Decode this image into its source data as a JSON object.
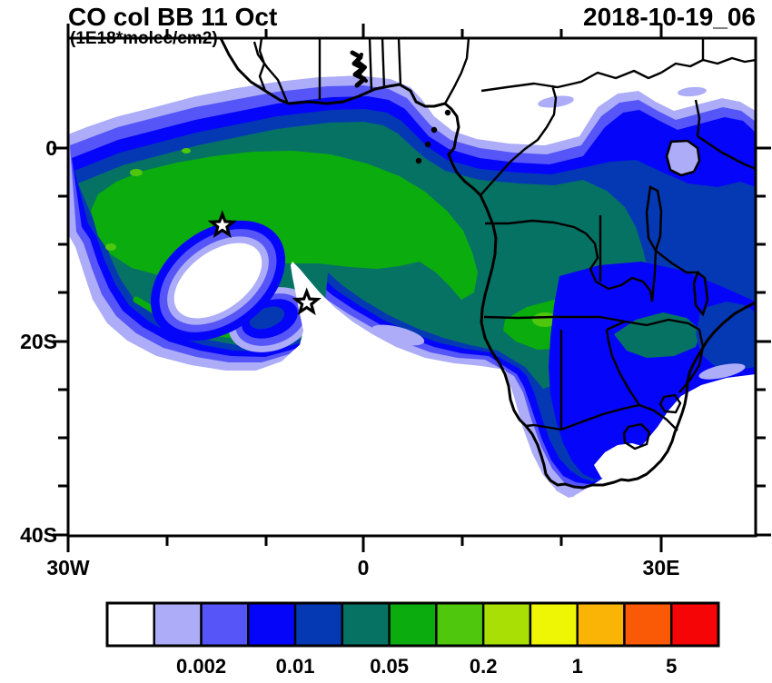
{
  "chart_data": {
    "type": "heatmap",
    "subtype": "filled-contour-map",
    "title": "CO col BB 11 Oct",
    "units_label": "(1E18*molec/cm2)",
    "timestamp": "2018-10-19_06",
    "lon_range_deg": [
      -30,
      40
    ],
    "lat_range_deg": [
      -40,
      11
    ],
    "x_ticks": [
      {
        "label": "30W",
        "lon": -30
      },
      {
        "label": "0",
        "lon": 0
      },
      {
        "label": "30E",
        "lon": 30
      }
    ],
    "y_ticks": [
      {
        "label": "0",
        "lat": 0
      },
      {
        "label": "20S",
        "lat": -20
      },
      {
        "label": "40S",
        "lat": -40
      }
    ],
    "minor_tick_interval_deg": {
      "lon": 10,
      "lat": 5
    },
    "grid": false,
    "colorbar": {
      "orientation": "horizontal",
      "position": "bottom",
      "colors": [
        "#ffffff",
        "#acacf8",
        "#5555f8",
        "#0505fa",
        "#0539b4",
        "#067264",
        "#0bad0e",
        "#4fc70c",
        "#aadf05",
        "#eef505",
        "#fab405",
        "#fa5a05",
        "#f50505"
      ],
      "tick_labels": [
        "0.002",
        "0.01",
        "0.05",
        "0.2",
        "1",
        "5"
      ],
      "tick_boundary_index": [
        2,
        4,
        6,
        8,
        10,
        12
      ]
    },
    "markers": [
      {
        "symbol": "open-star",
        "lon": -14.2,
        "lat": -8.0
      },
      {
        "symbol": "open-star",
        "lon": -5.7,
        "lat": -16.0
      }
    ]
  }
}
